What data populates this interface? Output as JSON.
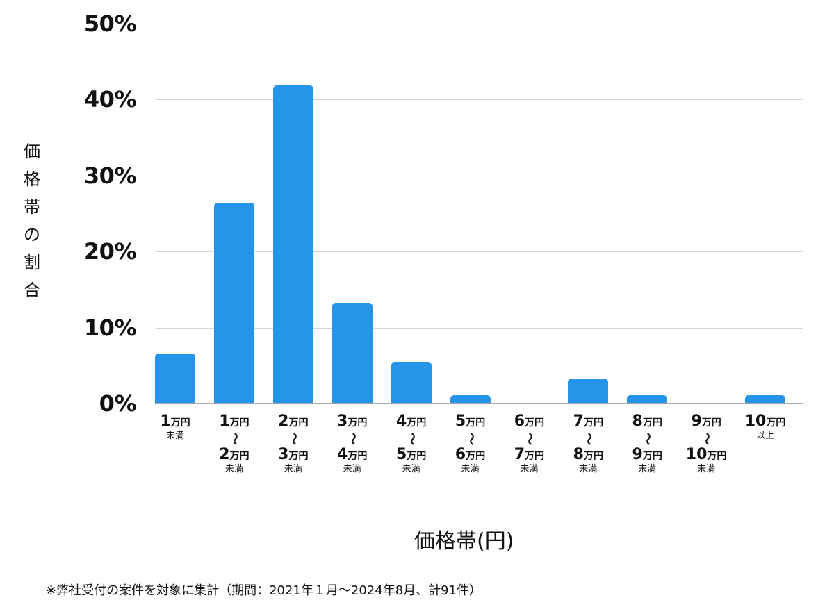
{
  "chart_data": {
    "type": "bar",
    "title": "",
    "xlabel": "価格帯(円)",
    "ylabel": "価格帯の割合",
    "ylim": [
      0,
      50
    ],
    "yticks": [
      "0%",
      "10%",
      "20%",
      "30%",
      "40%",
      "50%"
    ],
    "grid": true,
    "legend": null,
    "categories": [
      "1万円未満",
      "1万円〜2万円未満",
      "2万円〜3万円未満",
      "3万円〜4万円未満",
      "4万円〜5万円未満",
      "5万円〜6万円未満",
      "6万円〜7万円未満",
      "7万円〜8万円未満",
      "8万円〜9万円未満",
      "9万円〜10万円未満",
      "10万円以上"
    ],
    "values": [
      6.6,
      26.4,
      41.8,
      13.2,
      5.5,
      1.1,
      0,
      3.3,
      1.1,
      0,
      1.1
    ],
    "color": "#2694e8",
    "annotation": "※弊社受付の案件を対象に集計（期間：2021年１月〜2024年8月、計91件）"
  },
  "axis": {
    "y_ticks": [
      {
        "label": "50%",
        "value": 50
      },
      {
        "label": "40%",
        "value": 40
      },
      {
        "label": "30%",
        "value": 30
      },
      {
        "label": "20%",
        "value": 20
      },
      {
        "label": "10%",
        "value": 10
      },
      {
        "label": "0%",
        "value": 0
      }
    ],
    "y_title_chars": [
      "価",
      "格",
      "帯",
      "の",
      "割",
      "合"
    ],
    "x_title": "価格帯(円)"
  },
  "x_labels": [
    {
      "from": "1",
      "unit": "万円",
      "to": "",
      "sub": "未満"
    },
    {
      "from": "1",
      "unit": "万円",
      "to": "2",
      "sub": "未満"
    },
    {
      "from": "2",
      "unit": "万円",
      "to": "3",
      "sub": "未満"
    },
    {
      "from": "3",
      "unit": "万円",
      "to": "4",
      "sub": "未満"
    },
    {
      "from": "4",
      "unit": "万円",
      "to": "5",
      "sub": "未満"
    },
    {
      "from": "5",
      "unit": "万円",
      "to": "6",
      "sub": "未満"
    },
    {
      "from": "6",
      "unit": "万円",
      "to": "7",
      "sub": "未満"
    },
    {
      "from": "7",
      "unit": "万円",
      "to": "8",
      "sub": "未満"
    },
    {
      "from": "8",
      "unit": "万円",
      "to": "9",
      "sub": "未満"
    },
    {
      "from": "9",
      "unit": "万円",
      "to": "10",
      "sub": "未満"
    },
    {
      "from": "10",
      "unit": "万円",
      "to": "",
      "sub": "以上"
    }
  ],
  "tilde": "〜",
  "footnote": "※弊社受付の案件を対象に集計（期間：2021年１月〜2024年8月、計91件）"
}
